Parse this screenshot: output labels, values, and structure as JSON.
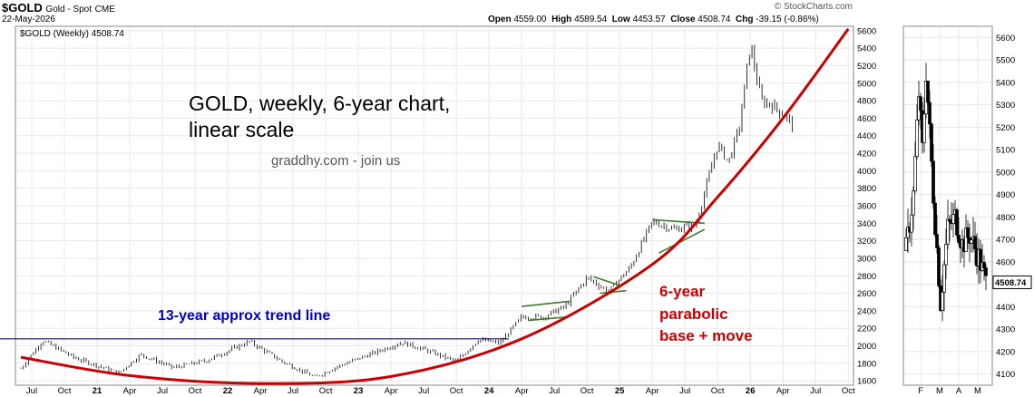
{
  "header": {
    "symbol": "$GOLD",
    "name": "Gold - Spot",
    "exchange": "CME",
    "date": "22-May-2026",
    "copyright": "© StockCharts.com",
    "open_label": "Open",
    "open": "4559.00",
    "high_label": "High",
    "high": "4589.54",
    "low_label": "Low",
    "low": "4453.57",
    "close_label": "Close",
    "close": "4508.74",
    "chg_label": "Chg",
    "chg": "-39.15 (-0.86%)"
  },
  "legend": {
    "label": "$GOLD (Weekly) 4508.74"
  },
  "colors": {
    "price": "#000000",
    "trendline": "#0000cc",
    "parabola": "#cc0000",
    "triangles": "#3a7d2a",
    "grid": "#e8e8e8"
  },
  "annotations": {
    "title_line1": "GOLD, weekly, 6-year chart,",
    "title_line2": "linear scale",
    "site": "graddhy.com - join us",
    "trend": "13-year approx trend line",
    "parabola_line1": "6-year",
    "parabola_line2": "parabolic",
    "parabola_line3": "base + move"
  },
  "chart_data": [
    {
      "type": "candlestick",
      "ylim": [
        1550,
        5650
      ],
      "yticks": [
        1600,
        1800,
        2000,
        2200,
        2400,
        2600,
        2800,
        3000,
        3200,
        3400,
        3600,
        3800,
        4000,
        4200,
        4400,
        4600,
        4800,
        5000,
        5200,
        5400,
        5600
      ],
      "xticks": [
        "Jul",
        "Oct",
        "21",
        "Apr",
        "Jul",
        "Oct",
        "22",
        "Apr",
        "Jul",
        "Oct",
        "23",
        "Apr",
        "Jul",
        "Oct",
        "24",
        "Apr",
        "Jul",
        "Oct",
        "25",
        "Apr",
        "Jul",
        "Oct",
        "26",
        "Apr",
        "Jul",
        "Oct"
      ],
      "price_path": [
        {
          "x": "2020-06",
          "y": 1740
        },
        {
          "x": "2020-08",
          "y": 2060
        },
        {
          "x": "2020-11",
          "y": 1860
        },
        {
          "x": "2021-03",
          "y": 1690
        },
        {
          "x": "2021-05",
          "y": 1900
        },
        {
          "x": "2021-08",
          "y": 1750
        },
        {
          "x": "2021-11",
          "y": 1830
        },
        {
          "x": "2022-03",
          "y": 2050
        },
        {
          "x": "2022-06",
          "y": 1820
        },
        {
          "x": "2022-09",
          "y": 1640
        },
        {
          "x": "2022-11",
          "y": 1760
        },
        {
          "x": "2023-02",
          "y": 1900
        },
        {
          "x": "2023-05",
          "y": 2040
        },
        {
          "x": "2023-07",
          "y": 1960
        },
        {
          "x": "2023-10",
          "y": 1820
        },
        {
          "x": "2023-12",
          "y": 2070
        },
        {
          "x": "2024-02",
          "y": 2030
        },
        {
          "x": "2024-04",
          "y": 2330
        },
        {
          "x": "2024-06",
          "y": 2330
        },
        {
          "x": "2024-08",
          "y": 2450
        },
        {
          "x": "2024-10",
          "y": 2780
        },
        {
          "x": "2024-12",
          "y": 2620
        },
        {
          "x": "2025-02",
          "y": 2900
        },
        {
          "x": "2025-04",
          "y": 3420
        },
        {
          "x": "2025-06",
          "y": 3330
        },
        {
          "x": "2025-08",
          "y": 3380
        },
        {
          "x": "2025-10",
          "y": 4300
        },
        {
          "x": "2025-11",
          "y": 4100
        },
        {
          "x": "2025-12",
          "y": 4500
        },
        {
          "x": "2026-01",
          "y": 5450
        },
        {
          "x": "2026-02",
          "y": 4800
        },
        {
          "x": "2026-03",
          "y": 4750
        },
        {
          "x": "2026-04",
          "y": 4650
        },
        {
          "x": "2026-05",
          "y": 4509
        }
      ],
      "trendline": {
        "y": 2080
      },
      "parabola": [
        {
          "x": "2020-06",
          "y": 1870
        },
        {
          "x": "2021-04",
          "y": 1660
        },
        {
          "x": "2022-04",
          "y": 1570
        },
        {
          "x": "2023-04",
          "y": 1650
        },
        {
          "x": "2024-04",
          "y": 2080
        },
        {
          "x": "2025-04",
          "y": 2930
        },
        {
          "x": "2025-10",
          "y": 3700
        },
        {
          "x": "2026-04",
          "y": 4600
        },
        {
          "x": "2026-10",
          "y": 5620
        }
      ]
    },
    {
      "type": "candlestick",
      "ylim": [
        4050,
        5650
      ],
      "yticks": [
        4100,
        4200,
        4300,
        4400,
        4500,
        4600,
        4700,
        4800,
        4900,
        5000,
        5100,
        5200,
        5300,
        5400,
        5500,
        5600
      ],
      "xticks": [
        "F",
        "M",
        "A",
        "M"
      ],
      "last_label": "4508.74"
    }
  ]
}
